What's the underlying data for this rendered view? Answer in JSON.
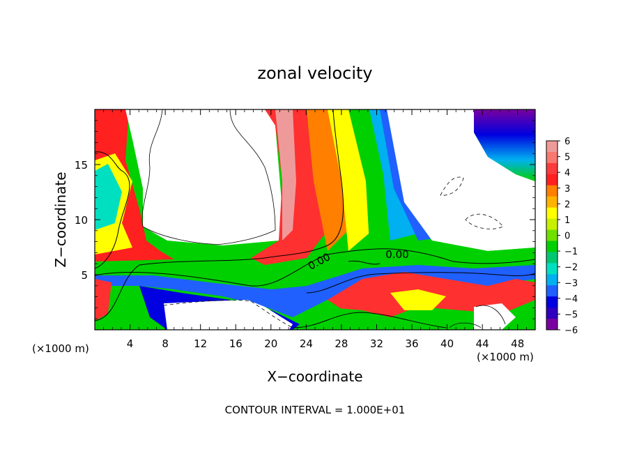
{
  "chart_data": {
    "type": "heatmap",
    "title": "zonal velocity",
    "xlabel": "X−coordinate",
    "ylabel": "Z−coordinate",
    "xlim": [
      0,
      50
    ],
    "ylim": [
      0,
      20
    ],
    "x_ticks": [
      4,
      8,
      12,
      16,
      20,
      24,
      28,
      32,
      36,
      40,
      44,
      48
    ],
    "y_ticks": [
      5,
      10,
      15
    ],
    "x_units": "(×1000 m)",
    "y_units": "(×1000 m)",
    "colorbar": {
      "min": -6,
      "max": 6,
      "ticks": [
        "6",
        "5",
        "4",
        "3",
        "2",
        "1",
        "0",
        "−1",
        "−2",
        "−3",
        "−4",
        "−5",
        "−6"
      ],
      "colors": [
        "#ef9a9a",
        "#f8786f",
        "#fb3b3b",
        "#ff2020",
        "#ff7f00",
        "#ffb300",
        "#ffff00",
        "#c8f000",
        "#6fe000",
        "#00d000",
        "#00c870",
        "#00e0c0",
        "#00b0f0",
        "#2060ff",
        "#0000e0",
        "#3000c0",
        "#7a00a0"
      ]
    },
    "contour_labels": [
      "0.00",
      "0.00"
    ],
    "contour_interval_text": "CONTOUR INTERVAL = 1.000E+01"
  }
}
